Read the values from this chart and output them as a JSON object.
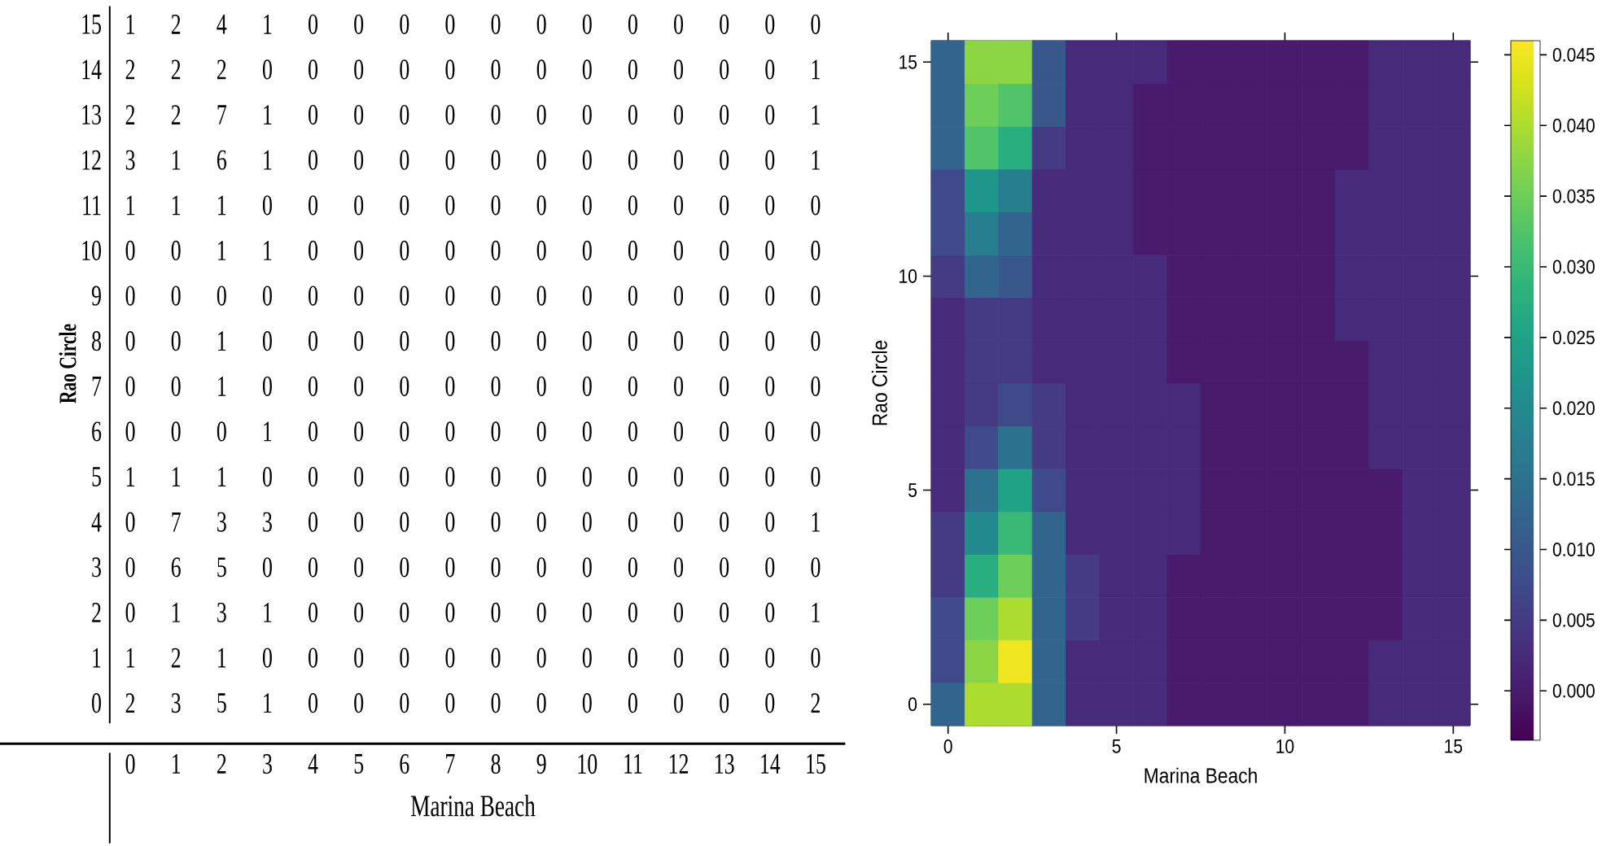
{
  "chart_data": [
    {
      "type": "heatmap",
      "xlabel": "Marina Beach",
      "ylabel": "Rao Circle",
      "data_labels": true,
      "categories": [
        "0",
        "1",
        "2",
        "3",
        "4",
        "5",
        "6",
        "7",
        "8",
        "9",
        "10",
        "11",
        "12",
        "13",
        "14",
        "15"
      ],
      "y_categories": [
        "15",
        "14",
        "13",
        "12",
        "11",
        "10",
        "9",
        "8",
        "7",
        "6",
        "5",
        "4",
        "3",
        "2",
        "1",
        "0"
      ],
      "cells": [
        [
          1,
          2,
          4,
          1,
          0,
          0,
          0,
          0,
          0,
          0,
          0,
          0,
          0,
          0,
          0,
          0
        ],
        [
          2,
          2,
          2,
          0,
          0,
          0,
          0,
          0,
          0,
          0,
          0,
          0,
          0,
          0,
          0,
          1
        ],
        [
          2,
          2,
          7,
          1,
          0,
          0,
          0,
          0,
          0,
          0,
          0,
          0,
          0,
          0,
          0,
          1
        ],
        [
          3,
          1,
          6,
          1,
          0,
          0,
          0,
          0,
          0,
          0,
          0,
          0,
          0,
          0,
          0,
          1
        ],
        [
          1,
          1,
          1,
          0,
          0,
          0,
          0,
          0,
          0,
          0,
          0,
          0,
          0,
          0,
          0,
          0
        ],
        [
          0,
          0,
          1,
          1,
          0,
          0,
          0,
          0,
          0,
          0,
          0,
          0,
          0,
          0,
          0,
          0
        ],
        [
          0,
          0,
          0,
          0,
          0,
          0,
          0,
          0,
          0,
          0,
          0,
          0,
          0,
          0,
          0,
          0
        ],
        [
          0,
          0,
          1,
          0,
          0,
          0,
          0,
          0,
          0,
          0,
          0,
          0,
          0,
          0,
          0,
          0
        ],
        [
          0,
          0,
          1,
          0,
          0,
          0,
          0,
          0,
          0,
          0,
          0,
          0,
          0,
          0,
          0,
          0
        ],
        [
          0,
          0,
          0,
          1,
          0,
          0,
          0,
          0,
          0,
          0,
          0,
          0,
          0,
          0,
          0,
          0
        ],
        [
          1,
          1,
          1,
          0,
          0,
          0,
          0,
          0,
          0,
          0,
          0,
          0,
          0,
          0,
          0,
          0
        ],
        [
          0,
          7,
          3,
          3,
          0,
          0,
          0,
          0,
          0,
          0,
          0,
          0,
          0,
          0,
          0,
          1
        ],
        [
          0,
          6,
          5,
          0,
          0,
          0,
          0,
          0,
          0,
          0,
          0,
          0,
          0,
          0,
          0,
          0
        ],
        [
          0,
          1,
          3,
          1,
          0,
          0,
          0,
          0,
          0,
          0,
          0,
          0,
          0,
          0,
          0,
          1
        ],
        [
          1,
          2,
          1,
          0,
          0,
          0,
          0,
          0,
          0,
          0,
          0,
          0,
          0,
          0,
          0,
          0
        ],
        [
          2,
          3,
          5,
          1,
          0,
          0,
          0,
          0,
          0,
          0,
          0,
          0,
          0,
          0,
          0,
          2
        ]
      ]
    },
    {
      "type": "heatmap",
      "xlabel": "Marina Beach",
      "ylabel": "Rao Circle",
      "categories": [
        "0",
        null,
        null,
        null,
        null,
        "5",
        null,
        null,
        null,
        null,
        "10",
        null,
        null,
        null,
        null,
        "15"
      ],
      "y_categories": [
        "15",
        null,
        null,
        null,
        null,
        "10",
        null,
        null,
        null,
        null,
        "5",
        null,
        null,
        null,
        null,
        "0"
      ],
      "clim": [
        -0.0035,
        0.046
      ],
      "cticks": [
        {
          "value": 0,
          "label": "0.000"
        },
        {
          "value": 0.005,
          "label": "0.005"
        },
        {
          "value": 0.01,
          "label": "0.010"
        },
        {
          "value": 0.015,
          "label": "0.015"
        },
        {
          "value": 0.02,
          "label": "0.020"
        },
        {
          "value": 0.025,
          "label": "0.025"
        },
        {
          "value": 0.03,
          "label": "0.030"
        },
        {
          "value": 0.035,
          "label": "0.035"
        },
        {
          "value": 0.04,
          "label": "0.040"
        },
        {
          "value": 0.045,
          "label": "0.045"
        }
      ],
      "cells": [
        [
          0.0125,
          0.0375,
          0.0375,
          0.01,
          0.0025,
          0.0025,
          0.0025,
          0,
          0,
          0,
          0,
          0,
          0,
          0.0025,
          0.0025,
          0.0025
        ],
        [
          0.0125,
          0.035,
          0.0325,
          0.01,
          0.0025,
          0.0025,
          0,
          0,
          0,
          0,
          0,
          0,
          0,
          0.0025,
          0.0025,
          0.0025
        ],
        [
          0.0125,
          0.0325,
          0.0275,
          0.005,
          0.0025,
          0.0025,
          0,
          0,
          0,
          0,
          0,
          0,
          0,
          0.0025,
          0.0025,
          0.0025
        ],
        [
          0.0075,
          0.0225,
          0.0175,
          0.0025,
          0.0025,
          0.0025,
          0,
          0,
          0,
          0,
          0,
          0,
          0.0025,
          0.0025,
          0.0025,
          0.0025
        ],
        [
          0.0075,
          0.0175,
          0.0125,
          0.0025,
          0.0025,
          0.0025,
          0,
          0,
          0,
          0,
          0,
          0,
          0.0025,
          0.0025,
          0.0025,
          0.0025
        ],
        [
          0.005,
          0.0125,
          0.01,
          0.0025,
          0.0025,
          0.0025,
          0.0025,
          0,
          0,
          0,
          0,
          0,
          0.0025,
          0.0025,
          0.0025,
          0.0025
        ],
        [
          0.0025,
          0.005,
          0.005,
          0.0025,
          0.0025,
          0.0025,
          0.0025,
          0,
          0,
          0,
          0,
          0,
          0.0025,
          0.0025,
          0.0025,
          0.0025
        ],
        [
          0.0025,
          0.005,
          0.005,
          0.0025,
          0.0025,
          0.0025,
          0.0025,
          0,
          0,
          0,
          0,
          0,
          0,
          0.0025,
          0.0025,
          0.0025
        ],
        [
          0.0025,
          0.005,
          0.0075,
          0.005,
          0.0025,
          0.0025,
          0.0025,
          0.0025,
          0,
          0,
          0,
          0,
          0,
          0.0025,
          0.0025,
          0.0025
        ],
        [
          0.0025,
          0.0075,
          0.015,
          0.005,
          0.0025,
          0.0025,
          0.0025,
          0.0025,
          0,
          0,
          0,
          0,
          0,
          0.0025,
          0.0025,
          0.0025
        ],
        [
          0.0025,
          0.015,
          0.025,
          0.0075,
          0.0025,
          0.0025,
          0.0025,
          0.0025,
          0,
          0,
          0,
          0,
          0,
          0,
          0.0025,
          0.0025
        ],
        [
          0.005,
          0.02,
          0.03,
          0.0125,
          0.0025,
          0.0025,
          0.0025,
          0.0025,
          0,
          0,
          0,
          0,
          0,
          0,
          0.0025,
          0.0025
        ],
        [
          0.005,
          0.0275,
          0.035,
          0.0125,
          0.005,
          0.0025,
          0.0025,
          0,
          0,
          0,
          0,
          0,
          0,
          0,
          0.0025,
          0.0025
        ],
        [
          0.0075,
          0.035,
          0.04,
          0.0125,
          0.005,
          0.0025,
          0.0025,
          0,
          0,
          0,
          0,
          0,
          0,
          0,
          0.0025,
          0.0025
        ],
        [
          0.0075,
          0.0375,
          0.045,
          0.0125,
          0.0025,
          0.0025,
          0.0025,
          0,
          0,
          0,
          0,
          0,
          0,
          0.0025,
          0.0025,
          0.0025
        ],
        [
          0.0125,
          0.04,
          0.04,
          0.0125,
          0.0025,
          0.0025,
          0.0025,
          0,
          0,
          0,
          0,
          0,
          0,
          0.0025,
          0.0025,
          0.0025
        ]
      ]
    }
  ]
}
